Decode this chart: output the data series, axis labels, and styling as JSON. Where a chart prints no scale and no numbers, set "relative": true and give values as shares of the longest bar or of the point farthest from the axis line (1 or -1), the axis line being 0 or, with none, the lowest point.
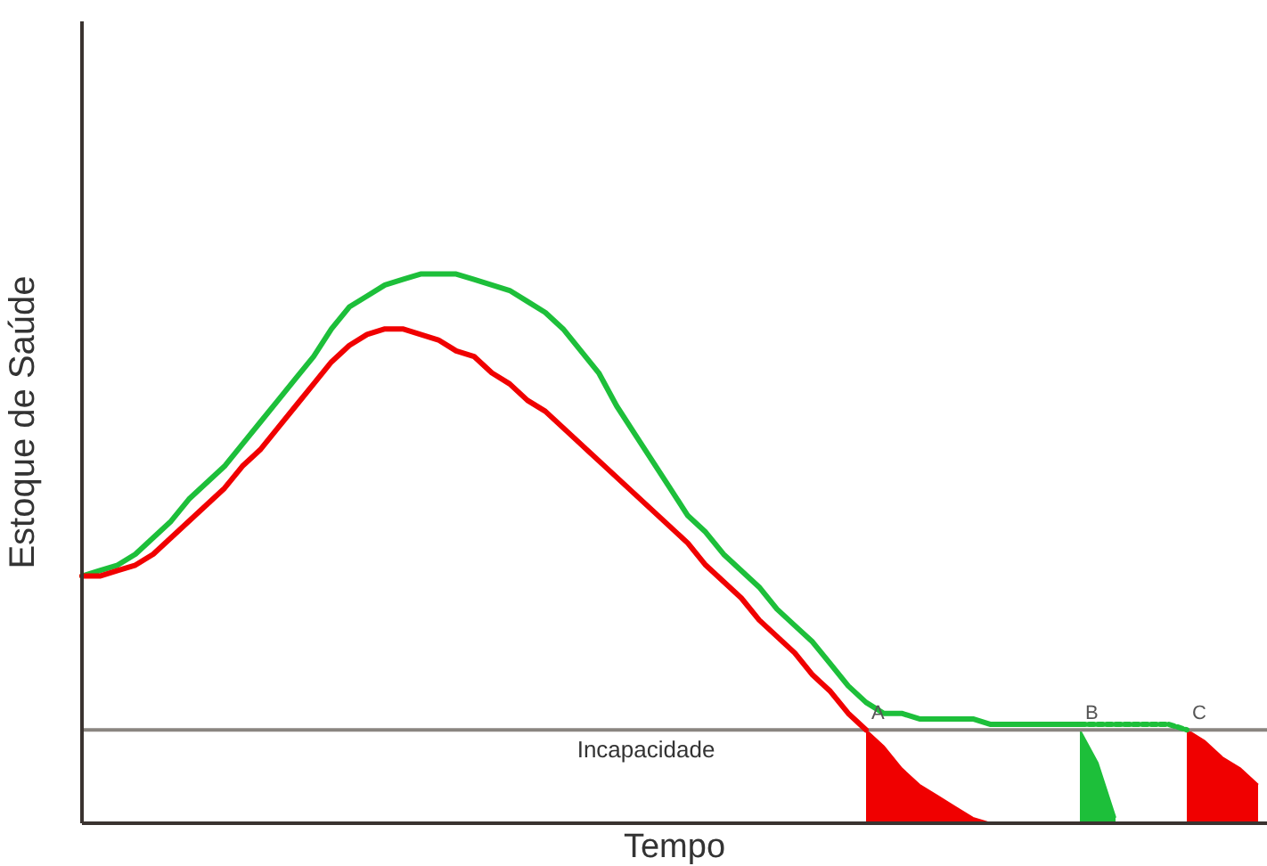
{
  "chart_data": {
    "type": "line",
    "relative": true,
    "xlabel": "Tempo",
    "ylabel": "Estoque de Saúde",
    "categories": [
      null,
      null,
      null,
      null,
      null,
      null,
      null,
      null,
      null,
      null,
      null,
      null,
      null,
      null,
      null,
      null,
      null,
      null,
      null,
      null,
      null,
      null,
      null,
      null,
      null,
      null,
      null,
      null,
      null,
      null,
      null,
      null,
      null,
      null,
      null,
      null,
      null,
      null,
      null,
      null,
      null,
      null,
      null,
      null,
      null,
      null,
      null,
      null,
      null,
      null,
      null,
      null,
      null,
      null,
      null,
      null,
      null,
      null,
      null,
      null,
      null,
      null,
      null,
      null,
      null,
      null,
      null
    ],
    "series": [
      {
        "color": "#1dbf3a",
        "values": [
          0.45,
          0.46,
          0.47,
          0.49,
          0.52,
          0.55,
          0.59,
          0.62,
          0.65,
          0.69,
          0.73,
          0.77,
          0.81,
          0.85,
          0.9,
          0.94,
          0.96,
          0.98,
          0.99,
          1.0,
          1.0,
          1.0,
          0.99,
          0.98,
          0.97,
          0.95,
          0.93,
          0.9,
          0.86,
          0.82,
          0.76,
          0.71,
          0.66,
          0.61,
          0.56,
          0.53,
          0.49,
          0.46,
          0.43,
          0.39,
          0.36,
          0.33,
          0.29,
          0.25,
          0.22,
          0.2,
          0.2,
          0.19,
          0.19,
          0.19,
          0.19,
          0.18,
          0.18,
          0.18,
          0.18,
          0.18,
          0.18,
          null,
          null,
          null,
          null,
          null,
          null,
          null,
          null,
          null,
          null
        ]
      },
      {
        "color": "#1dbf3a",
        "line_style": "dotted",
        "values": [
          null,
          null,
          null,
          null,
          null,
          null,
          null,
          null,
          null,
          null,
          null,
          null,
          null,
          null,
          null,
          null,
          null,
          null,
          null,
          null,
          null,
          null,
          null,
          null,
          null,
          null,
          null,
          null,
          null,
          null,
          null,
          null,
          null,
          null,
          null,
          null,
          null,
          null,
          null,
          null,
          null,
          null,
          null,
          null,
          null,
          null,
          null,
          null,
          null,
          null,
          null,
          null,
          null,
          null,
          null,
          null,
          0.18,
          0.18,
          0.18,
          0.18,
          0.18,
          0.18,
          0.17,
          null,
          null,
          null,
          null
        ]
      },
      {
        "color": "#f00000",
        "values": [
          0.45,
          0.45,
          0.46,
          0.47,
          0.49,
          0.52,
          0.55,
          0.58,
          0.61,
          0.65,
          0.68,
          0.72,
          0.76,
          0.8,
          0.84,
          0.87,
          0.89,
          0.9,
          0.9,
          0.89,
          0.88,
          0.86,
          0.85,
          0.82,
          0.8,
          0.77,
          0.75,
          0.72,
          0.69,
          0.66,
          0.63,
          0.6,
          0.57,
          0.54,
          0.51,
          0.47,
          0.44,
          0.41,
          0.37,
          0.34,
          0.31,
          0.27,
          0.24,
          0.2,
          0.17,
          null,
          null,
          null,
          null,
          null,
          null,
          null,
          null,
          null,
          null,
          null,
          null,
          null,
          null,
          null,
          null,
          null,
          null,
          null,
          null,
          null,
          null
        ]
      },
      {
        "type": "area",
        "name": "A",
        "color": "#f00000",
        "values": [
          null,
          null,
          null,
          null,
          null,
          null,
          null,
          null,
          null,
          null,
          null,
          null,
          null,
          null,
          null,
          null,
          null,
          null,
          null,
          null,
          null,
          null,
          null,
          null,
          null,
          null,
          null,
          null,
          null,
          null,
          null,
          null,
          null,
          null,
          null,
          null,
          null,
          null,
          null,
          null,
          null,
          null,
          null,
          null,
          0.17,
          0.14,
          0.1,
          0.07,
          0.05,
          0.03,
          0.01,
          0,
          null,
          null,
          null,
          null,
          null,
          null,
          null,
          null,
          null,
          null,
          null,
          null,
          null,
          null,
          null
        ]
      },
      {
        "type": "area",
        "name": "B",
        "color": "#1dbf3a",
        "values": [
          null,
          null,
          null,
          null,
          null,
          null,
          null,
          null,
          null,
          null,
          null,
          null,
          null,
          null,
          null,
          null,
          null,
          null,
          null,
          null,
          null,
          null,
          null,
          null,
          null,
          null,
          null,
          null,
          null,
          null,
          null,
          null,
          null,
          null,
          null,
          null,
          null,
          null,
          null,
          null,
          null,
          null,
          null,
          null,
          null,
          null,
          null,
          null,
          null,
          null,
          null,
          null,
          null,
          null,
          null,
          null,
          0.17,
          0.11,
          0.01,
          null,
          null,
          null,
          null,
          null,
          null,
          null,
          null
        ]
      },
      {
        "type": "area",
        "name": "C",
        "color": "#f00000",
        "values": [
          null,
          null,
          null,
          null,
          null,
          null,
          null,
          null,
          null,
          null,
          null,
          null,
          null,
          null,
          null,
          null,
          null,
          null,
          null,
          null,
          null,
          null,
          null,
          null,
          null,
          null,
          null,
          null,
          null,
          null,
          null,
          null,
          null,
          null,
          null,
          null,
          null,
          null,
          null,
          null,
          null,
          null,
          null,
          null,
          null,
          null,
          null,
          null,
          null,
          null,
          null,
          null,
          null,
          null,
          null,
          null,
          null,
          null,
          null,
          null,
          null,
          null,
          0.17,
          0.15,
          0.12,
          0.1,
          0.07
        ]
      }
    ],
    "ref_lines": [
      {
        "axis": "y",
        "value": 0.17,
        "label": "Incapacidade",
        "color": "#8a8580"
      }
    ]
  }
}
